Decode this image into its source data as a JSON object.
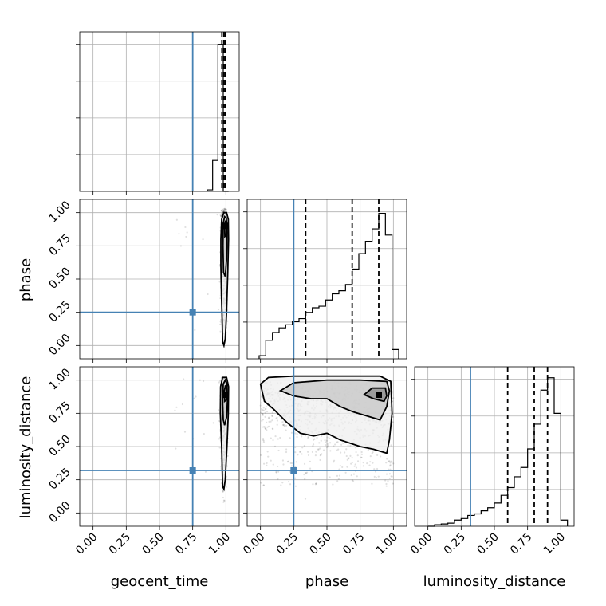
{
  "params": [
    "geocent_time",
    "phase",
    "luminosity_distance"
  ],
  "ticks": [
    0.0,
    0.25,
    0.5,
    0.75,
    1.0
  ],
  "tick_labels": [
    "0.00",
    "0.25",
    "0.50",
    "0.75",
    "1.00"
  ],
  "colors": {
    "truth": "#4682b4",
    "lines": "#000000",
    "grid": "#b0b0b0"
  },
  "chart_data": {
    "type": "corner",
    "title": "",
    "parameters": [
      "geocent_time",
      "phase",
      "luminosity_distance"
    ],
    "axis_range": [
      -0.1,
      1.1
    ],
    "truths": {
      "geocent_time": 0.75,
      "phase": 0.25,
      "luminosity_distance": 0.32
    },
    "histograms": [
      {
        "parameter": "geocent_time",
        "bin_edges": [
          0.86,
          0.9,
          0.94,
          0.98,
          1.02
        ],
        "counts": [
          0.01,
          0.2,
          0.95,
          0.0
        ],
        "quantiles": [
          0.97,
          0.985,
          0.995
        ]
      },
      {
        "parameter": "phase",
        "bin_edges": [
          -0.01,
          0.04,
          0.09,
          0.14,
          0.19,
          0.24,
          0.29,
          0.34,
          0.39,
          0.44,
          0.49,
          0.54,
          0.59,
          0.64,
          0.69,
          0.74,
          0.79,
          0.84,
          0.89,
          0.94,
          0.99,
          1.04
        ],
        "counts": [
          0.02,
          0.12,
          0.17,
          0.2,
          0.22,
          0.24,
          0.26,
          0.3,
          0.33,
          0.34,
          0.38,
          0.42,
          0.44,
          0.48,
          0.58,
          0.68,
          0.76,
          0.84,
          0.94,
          0.8,
          0.06
        ],
        "quantiles": [
          0.34,
          0.69,
          0.89
        ]
      },
      {
        "parameter": "luminosity_distance",
        "bin_edges": [
          0.0,
          0.05,
          0.1,
          0.15,
          0.2,
          0.25,
          0.3,
          0.35,
          0.4,
          0.45,
          0.5,
          0.55,
          0.6,
          0.65,
          0.7,
          0.75,
          0.8,
          0.85,
          0.9,
          0.95,
          1.0,
          1.05
        ],
        "counts": [
          0.0,
          0.01,
          0.015,
          0.02,
          0.04,
          0.05,
          0.07,
          0.08,
          0.1,
          0.12,
          0.15,
          0.2,
          0.25,
          0.32,
          0.38,
          0.5,
          0.66,
          0.88,
          0.96,
          0.73,
          0.04
        ],
        "quantiles": [
          0.6,
          0.8,
          0.9
        ]
      }
    ],
    "pairs": [
      {
        "x": "geocent_time",
        "y": "phase",
        "peak": [
          0.995,
          0.9
        ],
        "contours": [
          [
            [
              0.975,
              0.03
            ],
            [
              0.972,
              0.18
            ],
            [
              0.966,
              0.4
            ],
            [
              0.962,
              0.6
            ],
            [
              0.962,
              0.8
            ],
            [
              0.968,
              0.95
            ],
            [
              0.985,
              1.0
            ],
            [
              1.005,
              1.0
            ],
            [
              1.018,
              0.95
            ],
            [
              1.02,
              0.8
            ],
            [
              1.014,
              0.55
            ],
            [
              1.005,
              0.25
            ],
            [
              0.995,
              0.05
            ],
            [
              0.985,
              0.0
            ],
            [
              0.975,
              0.03
            ]
          ],
          [
            [
              0.982,
              0.55
            ],
            [
              0.978,
              0.75
            ],
            [
              0.98,
              0.92
            ],
            [
              0.99,
              0.97
            ],
            [
              1.003,
              0.96
            ],
            [
              1.01,
              0.85
            ],
            [
              1.005,
              0.65
            ],
            [
              0.995,
              0.52
            ],
            [
              0.982,
              0.55
            ]
          ],
          [
            [
              0.992,
              0.82
            ],
            [
              0.99,
              0.9
            ],
            [
              0.998,
              0.94
            ],
            [
              1.005,
              0.9
            ],
            [
              1.002,
              0.83
            ],
            [
              0.992,
              0.82
            ]
          ]
        ]
      },
      {
        "x": "geocent_time",
        "y": "luminosity_distance",
        "peak": [
          0.995,
          0.89
        ],
        "contours": [
          [
            [
              0.975,
              0.2
            ],
            [
              0.968,
              0.5
            ],
            [
              0.958,
              0.75
            ],
            [
              0.96,
              0.95
            ],
            [
              0.975,
              1.02
            ],
            [
              1.005,
              1.02
            ],
            [
              1.02,
              0.95
            ],
            [
              1.018,
              0.75
            ],
            [
              1.008,
              0.5
            ],
            [
              0.995,
              0.25
            ],
            [
              0.985,
              0.18
            ],
            [
              0.975,
              0.2
            ]
          ],
          [
            [
              0.98,
              0.7
            ],
            [
              0.975,
              0.85
            ],
            [
              0.98,
              0.97
            ],
            [
              0.995,
              1.0
            ],
            [
              1.008,
              0.97
            ],
            [
              1.012,
              0.85
            ],
            [
              1.005,
              0.72
            ],
            [
              0.99,
              0.66
            ],
            [
              0.98,
              0.7
            ]
          ],
          [
            [
              0.99,
              0.84
            ],
            [
              0.988,
              0.92
            ],
            [
              0.997,
              0.96
            ],
            [
              1.006,
              0.92
            ],
            [
              1.003,
              0.85
            ],
            [
              0.99,
              0.84
            ]
          ]
        ]
      },
      {
        "x": "phase",
        "y": "luminosity_distance",
        "peak": [
          0.89,
          0.89
        ],
        "contours": [
          [
            [
              0.0,
              0.97
            ],
            [
              0.06,
              1.02
            ],
            [
              0.25,
              1.03
            ],
            [
              0.5,
              1.03
            ],
            [
              0.75,
              1.03
            ],
            [
              0.9,
              1.03
            ],
            [
              0.98,
              0.99
            ],
            [
              0.99,
              0.75
            ],
            [
              0.97,
              0.55
            ],
            [
              0.95,
              0.45
            ],
            [
              0.85,
              0.48
            ],
            [
              0.75,
              0.5
            ],
            [
              0.6,
              0.55
            ],
            [
              0.5,
              0.6
            ],
            [
              0.4,
              0.58
            ],
            [
              0.3,
              0.6
            ],
            [
              0.2,
              0.68
            ],
            [
              0.1,
              0.78
            ],
            [
              0.03,
              0.84
            ],
            [
              0.0,
              0.97
            ]
          ],
          [
            [
              0.15,
              0.92
            ],
            [
              0.25,
              0.98
            ],
            [
              0.5,
              1.0
            ],
            [
              0.75,
              1.0
            ],
            [
              0.95,
              0.99
            ],
            [
              0.97,
              0.92
            ],
            [
              0.95,
              0.8
            ],
            [
              0.9,
              0.7
            ],
            [
              0.8,
              0.73
            ],
            [
              0.7,
              0.76
            ],
            [
              0.6,
              0.8
            ],
            [
              0.5,
              0.86
            ],
            [
              0.38,
              0.86
            ],
            [
              0.25,
              0.88
            ],
            [
              0.15,
              0.92
            ]
          ],
          [
            [
              0.78,
              0.89
            ],
            [
              0.84,
              0.94
            ],
            [
              0.94,
              0.94
            ],
            [
              0.95,
              0.88
            ],
            [
              0.93,
              0.84
            ],
            [
              0.85,
              0.86
            ],
            [
              0.78,
              0.89
            ]
          ]
        ]
      }
    ],
    "axis_labels": {
      "x": [
        "geocent_time",
        "phase",
        "luminosity_distance"
      ],
      "y": [
        "phase",
        "luminosity_distance"
      ]
    }
  }
}
